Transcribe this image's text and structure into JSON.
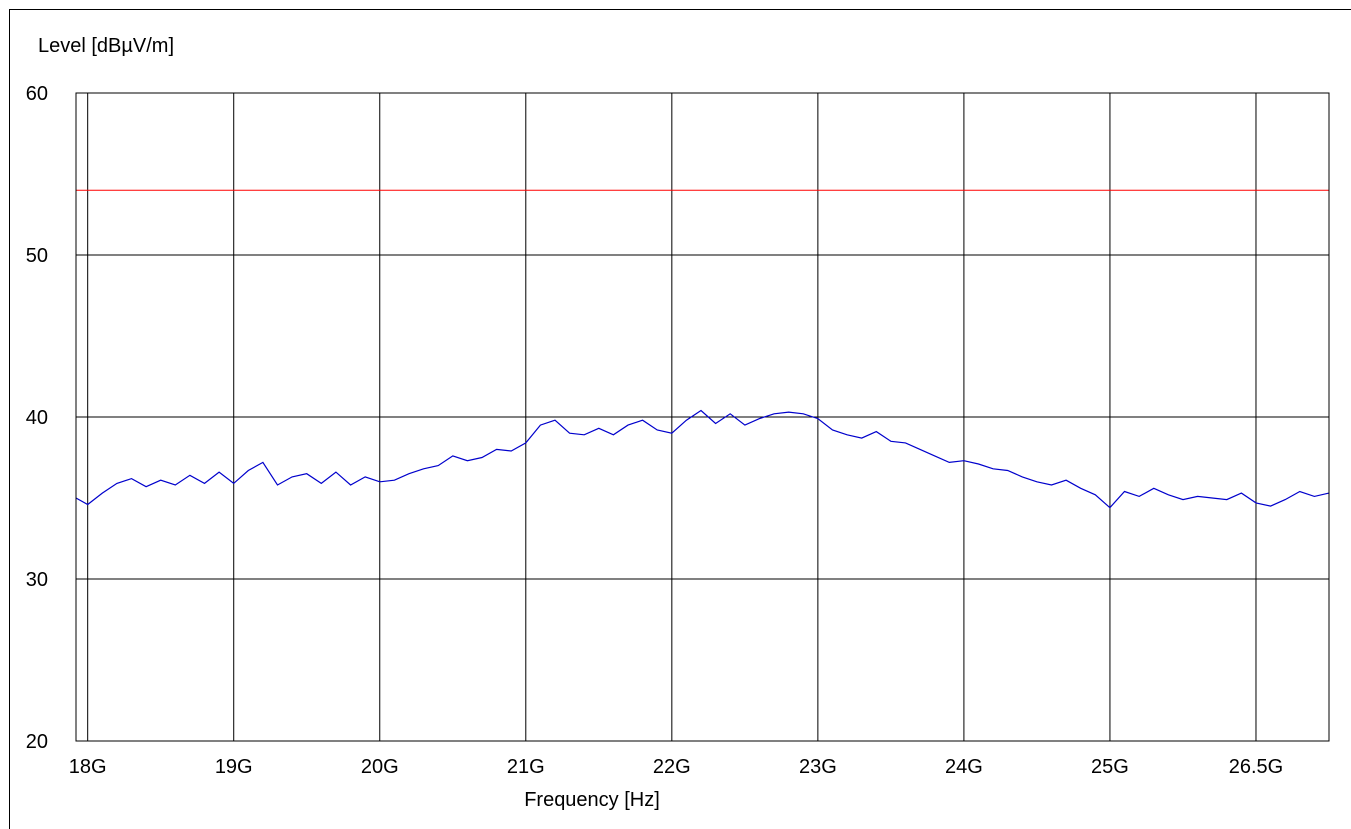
{
  "chart_data": {
    "type": "line",
    "title": "",
    "xlabel": "Frequency [Hz]",
    "ylabel": "Level [dBµV/m]",
    "ylim": [
      20,
      60
    ],
    "yticks": [
      20,
      30,
      40,
      50,
      60
    ],
    "x_ticks": [
      {
        "label": "18G",
        "pos": 0
      },
      {
        "label": "19G",
        "pos": 1
      },
      {
        "label": "20G",
        "pos": 2
      },
      {
        "label": "21G",
        "pos": 3
      },
      {
        "label": "22G",
        "pos": 4
      },
      {
        "label": "23G",
        "pos": 5
      },
      {
        "label": "24G",
        "pos": 6
      },
      {
        "label": "25G",
        "pos": 7
      },
      {
        "label": "26.5G",
        "pos": 8
      }
    ],
    "x_extent": [
      -0.08,
      8.5
    ],
    "grid": true,
    "limit_line": {
      "value": 54,
      "color": "#ff0000"
    },
    "series": [
      {
        "color": "#0000cc",
        "x": [
          -0.08,
          0.0,
          0.1,
          0.2,
          0.3,
          0.4,
          0.5,
          0.6,
          0.7,
          0.8,
          0.9,
          1.0,
          1.1,
          1.2,
          1.3,
          1.4,
          1.5,
          1.6,
          1.7,
          1.8,
          1.9,
          2.0,
          2.1,
          2.2,
          2.3,
          2.4,
          2.5,
          2.6,
          2.7,
          2.8,
          2.9,
          3.0,
          3.1,
          3.2,
          3.3,
          3.4,
          3.5,
          3.6,
          3.7,
          3.8,
          3.9,
          4.0,
          4.1,
          4.2,
          4.3,
          4.4,
          4.5,
          4.6,
          4.7,
          4.8,
          4.9,
          5.0,
          5.1,
          5.2,
          5.3,
          5.4,
          5.5,
          5.6,
          5.7,
          5.8,
          5.9,
          6.0,
          6.1,
          6.2,
          6.3,
          6.4,
          6.5,
          6.6,
          6.7,
          6.8,
          6.9,
          7.0,
          7.1,
          7.2,
          7.3,
          7.4,
          7.5,
          7.6,
          7.7,
          7.8,
          7.9,
          8.0,
          8.1,
          8.2,
          8.3,
          8.4,
          8.5
        ],
        "y": [
          35.0,
          34.6,
          35.3,
          35.9,
          36.2,
          35.7,
          36.1,
          35.8,
          36.4,
          35.9,
          36.6,
          35.9,
          36.7,
          37.2,
          35.8,
          36.3,
          36.5,
          35.9,
          36.6,
          35.8,
          36.3,
          36.0,
          36.1,
          36.5,
          36.8,
          37.0,
          37.6,
          37.3,
          37.5,
          38.0,
          37.9,
          38.4,
          39.5,
          39.8,
          39.0,
          38.9,
          39.3,
          38.9,
          39.5,
          39.8,
          39.2,
          39.0,
          39.8,
          40.4,
          39.6,
          40.2,
          39.5,
          39.9,
          40.2,
          40.3,
          40.2,
          39.9,
          39.2,
          38.9,
          38.7,
          39.1,
          38.5,
          38.4,
          38.0,
          37.6,
          37.2,
          37.3,
          37.1,
          36.8,
          36.7,
          36.3,
          36.0,
          35.8,
          36.1,
          35.6,
          35.2,
          34.4,
          35.4,
          35.1,
          35.6,
          35.2,
          34.9,
          35.1,
          35.0,
          34.9,
          35.3,
          34.7,
          34.5,
          34.9,
          35.4,
          35.1,
          35.3
        ]
      }
    ]
  }
}
